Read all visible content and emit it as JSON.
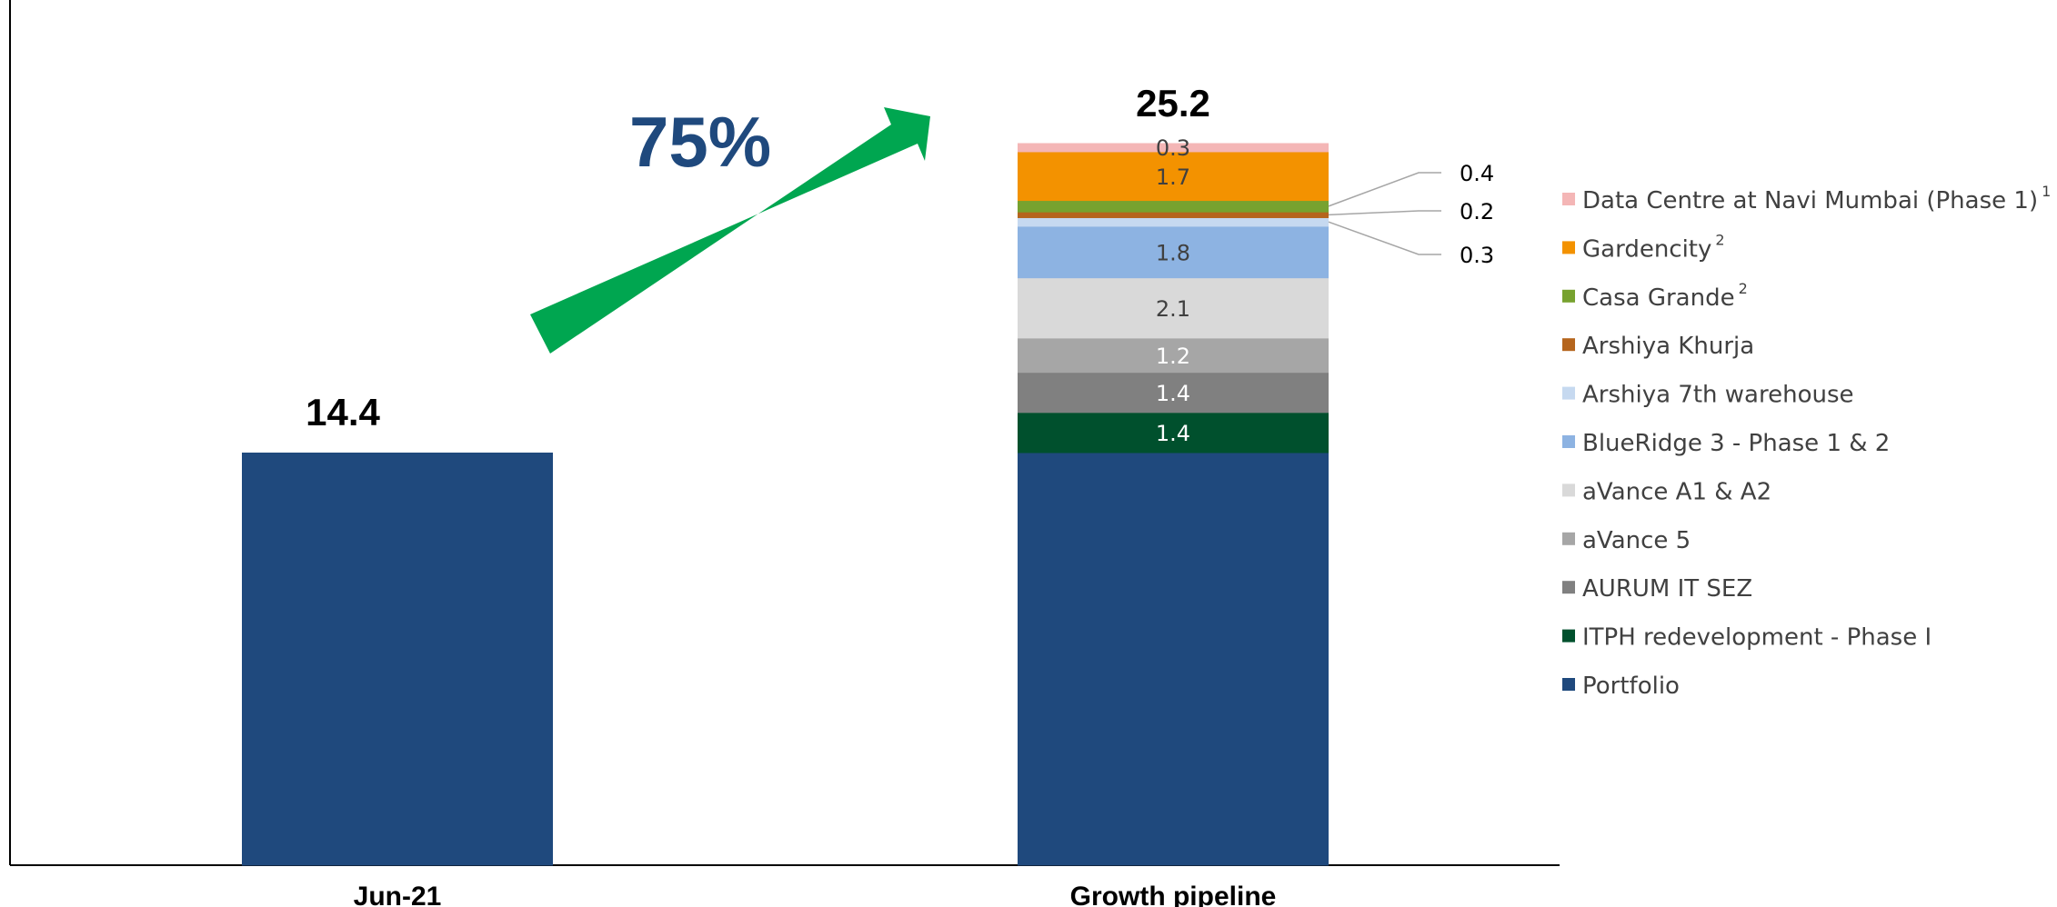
{
  "chart_data": {
    "type": "bar",
    "stacked": true,
    "categories": [
      "Jun-21",
      "Growth pipeline"
    ],
    "ylim": [
      0,
      27
    ],
    "totals": [
      "14.4",
      "25.2"
    ],
    "growth_label": "75%",
    "series": [
      {
        "name": "Portfolio",
        "color": "#1f497d",
        "label_color": "#ffffff",
        "values": [
          14.4,
          14.4
        ],
        "labels": [
          "",
          ""
        ]
      },
      {
        "name": "ITPH redevelopment - Phase I",
        "color": "#00502d",
        "label_color": "#ffffff",
        "values": [
          0,
          1.4
        ],
        "labels": [
          "",
          "1.4"
        ]
      },
      {
        "name": "AURUM IT SEZ",
        "color": "#808080",
        "label_color": "#ffffff",
        "values": [
          0,
          1.4
        ],
        "labels": [
          "",
          "1.4"
        ]
      },
      {
        "name": "aVance 5",
        "color": "#a6a6a6",
        "label_color": "#ffffff",
        "values": [
          0,
          1.2
        ],
        "labels": [
          "",
          "1.2"
        ]
      },
      {
        "name": "aVance A1 & A2",
        "color": "#d9d9d9",
        "label_color": "#404040",
        "values": [
          0,
          2.1
        ],
        "labels": [
          "",
          "2.1"
        ]
      },
      {
        "name": "BlueRidge 3 - Phase 1 & 2",
        "color": "#8db3e2",
        "label_color": "#404040",
        "values": [
          0,
          1.8
        ],
        "labels": [
          "",
          "1.8"
        ]
      },
      {
        "name": "Arshiya 7th warehouse",
        "color": "#c6d9f0",
        "label_color": "#000000",
        "values": [
          0,
          0.3
        ],
        "labels": [
          "",
          ""
        ],
        "callout": "0.3"
      },
      {
        "name": "Arshiya Khurja",
        "color": "#b5651d",
        "label_color": "#000000",
        "values": [
          0,
          0.2
        ],
        "labels": [
          "",
          ""
        ],
        "callout": "0.2"
      },
      {
        "name": "Casa Grande",
        "sup": "2",
        "color": "#77a22f",
        "label_color": "#000000",
        "values": [
          0,
          0.4
        ],
        "labels": [
          "",
          ""
        ],
        "callout": "0.4"
      },
      {
        "name": "Gardencity",
        "sup": "2",
        "color": "#f39200",
        "label_color": "#404040",
        "values": [
          0,
          1.7
        ],
        "labels": [
          "",
          "1.7"
        ]
      },
      {
        "name": "Data Centre at Navi Mumbai (Phase 1)",
        "sup": "1",
        "color": "#f4b6b6",
        "label_color": "#404040",
        "values": [
          0,
          0.3
        ],
        "labels": [
          "",
          "0.3"
        ]
      }
    ],
    "legend_position": "right",
    "grid": false
  },
  "colors": {
    "arrow": "#00a650",
    "axis": "#000000"
  }
}
